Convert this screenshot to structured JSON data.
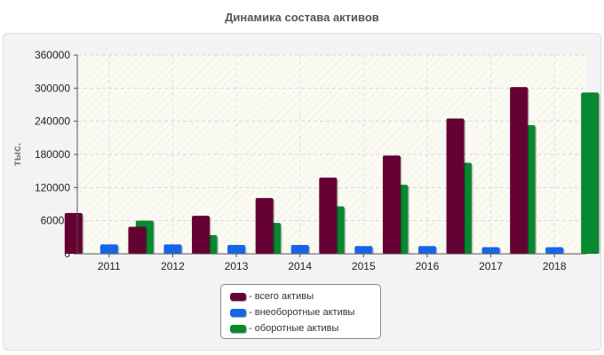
{
  "title": "Динамика состава активов",
  "chart_data": {
    "type": "bar",
    "title": "Динамика состава активов",
    "ylabel": "тыс.",
    "xlabel": "",
    "ylim": [
      0,
      360000
    ],
    "yticks": [
      0,
      60000,
      120000,
      180000,
      240000,
      300000,
      360000
    ],
    "grid": true,
    "legend_position": "bottom",
    "categories": [
      "2011",
      "2012",
      "2013",
      "2014",
      "2015",
      "2016",
      "2017",
      "2018"
    ],
    "series": [
      {
        "name": "- всего активы",
        "color": "#650033",
        "values": [
          74000,
          49000,
          69000,
          101000,
          138000,
          178000,
          245000,
          302000
        ]
      },
      {
        "name": "- внеоборотные активы",
        "color": "#1566e6",
        "values": [
          17000,
          17000,
          16000,
          16000,
          14000,
          14000,
          12000,
          12000
        ]
      },
      {
        "name": "- оборотные активы",
        "color": "#06892f",
        "values": [
          60000,
          34000,
          56000,
          86000,
          125000,
          165000,
          233000,
          292000
        ]
      }
    ]
  }
}
